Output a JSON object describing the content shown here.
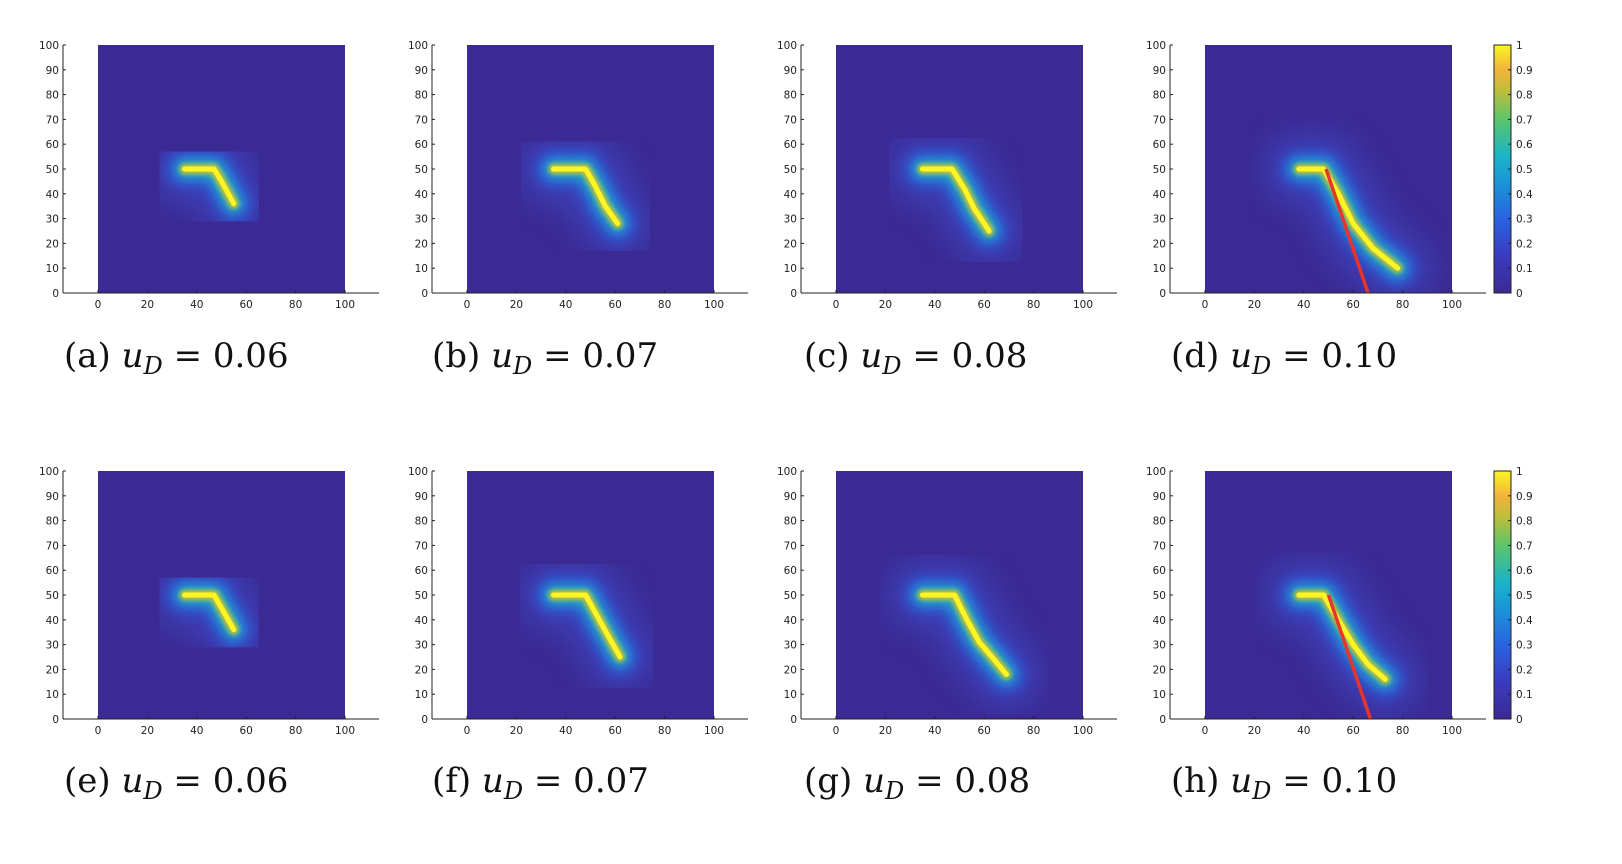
{
  "figure": {
    "x_ticks": [
      "0",
      "20",
      "40",
      "60",
      "80",
      "100"
    ],
    "y_ticks": [
      "0",
      "10",
      "20",
      "30",
      "40",
      "50",
      "60",
      "70",
      "80",
      "90",
      "100"
    ],
    "colorbar_ticks": [
      "0",
      "0.1",
      "0.2",
      "0.3",
      "0.4",
      "0.5",
      "0.6",
      "0.7",
      "0.8",
      "0.9",
      "1"
    ],
    "colormap": {
      "low": "#3b2a94",
      "mid_blue": "#2a63e0",
      "cyan": "#1ab3c9",
      "green": "#5bc56a",
      "orange": "#f2b43c",
      "yellow": "#f9f623"
    },
    "line_color": "#e8342b"
  },
  "chart_data": [
    {
      "type": "heatmap",
      "label": "(a)",
      "var": "u",
      "sub": "D",
      "value": "0.06",
      "xlim": [
        0,
        100
      ],
      "ylim": [
        0,
        100
      ],
      "crack": [
        [
          35,
          50
        ],
        [
          47,
          50
        ],
        [
          50,
          45
        ],
        [
          55,
          36
        ]
      ],
      "tip": [
        55,
        36
      ],
      "red_line": null
    },
    {
      "type": "heatmap",
      "label": "(b)",
      "var": "u",
      "sub": "D",
      "value": "0.07",
      "xlim": [
        0,
        100
      ],
      "ylim": [
        0,
        100
      ],
      "crack": [
        [
          35,
          50
        ],
        [
          48,
          50
        ],
        [
          52,
          43
        ],
        [
          56,
          35
        ],
        [
          61,
          28
        ]
      ],
      "tip": [
        61,
        28
      ],
      "red_line": null
    },
    {
      "type": "heatmap",
      "label": "(c)",
      "var": "u",
      "sub": "D",
      "value": "0.08",
      "xlim": [
        0,
        100
      ],
      "ylim": [
        0,
        100
      ],
      "crack": [
        [
          35,
          50
        ],
        [
          47,
          50
        ],
        [
          52,
          42
        ],
        [
          56,
          34
        ],
        [
          62,
          25
        ]
      ],
      "tip": [
        62,
        25
      ],
      "red_line": null
    },
    {
      "type": "heatmap",
      "label": "(d)",
      "var": "u",
      "sub": "D",
      "value": "0.10",
      "xlim": [
        0,
        100
      ],
      "ylim": [
        0,
        100
      ],
      "crack": [
        [
          38,
          50
        ],
        [
          48,
          50
        ],
        [
          54,
          40
        ],
        [
          60,
          28
        ],
        [
          68,
          18
        ],
        [
          78,
          10
        ]
      ],
      "tip": [
        78,
        10
      ],
      "red_line": [
        [
          49,
          50
        ],
        [
          66,
          0
        ]
      ]
    },
    {
      "type": "heatmap",
      "label": "(e)",
      "var": "u",
      "sub": "D",
      "value": "0.06",
      "xlim": [
        0,
        100
      ],
      "ylim": [
        0,
        100
      ],
      "crack": [
        [
          35,
          50
        ],
        [
          47,
          50
        ],
        [
          51,
          43
        ],
        [
          55,
          36
        ]
      ],
      "tip": [
        55,
        36
      ],
      "red_line": null
    },
    {
      "type": "heatmap",
      "label": "(f)",
      "var": "u",
      "sub": "D",
      "value": "0.07",
      "xlim": [
        0,
        100
      ],
      "ylim": [
        0,
        100
      ],
      "crack": [
        [
          35,
          50
        ],
        [
          48,
          50
        ],
        [
          53,
          41
        ],
        [
          58,
          32
        ],
        [
          62,
          25
        ]
      ],
      "tip": [
        62,
        25
      ],
      "red_line": null
    },
    {
      "type": "heatmap",
      "label": "(g)",
      "var": "u",
      "sub": "D",
      "value": "0.08",
      "xlim": [
        0,
        100
      ],
      "ylim": [
        0,
        100
      ],
      "crack": [
        [
          35,
          50
        ],
        [
          48,
          50
        ],
        [
          53,
          40
        ],
        [
          58,
          31
        ],
        [
          64,
          24
        ],
        [
          69,
          18
        ]
      ],
      "tip": [
        69,
        18
      ],
      "red_line": null
    },
    {
      "type": "heatmap",
      "label": "(h)",
      "var": "u",
      "sub": "D",
      "value": "0.10",
      "xlim": [
        0,
        100
      ],
      "ylim": [
        0,
        100
      ],
      "crack": [
        [
          38,
          50
        ],
        [
          48,
          50
        ],
        [
          54,
          40
        ],
        [
          60,
          30
        ],
        [
          66,
          22
        ],
        [
          73,
          16
        ]
      ],
      "tip": [
        73,
        16
      ],
      "red_line": [
        [
          50,
          50
        ],
        [
          67,
          0
        ]
      ]
    }
  ]
}
